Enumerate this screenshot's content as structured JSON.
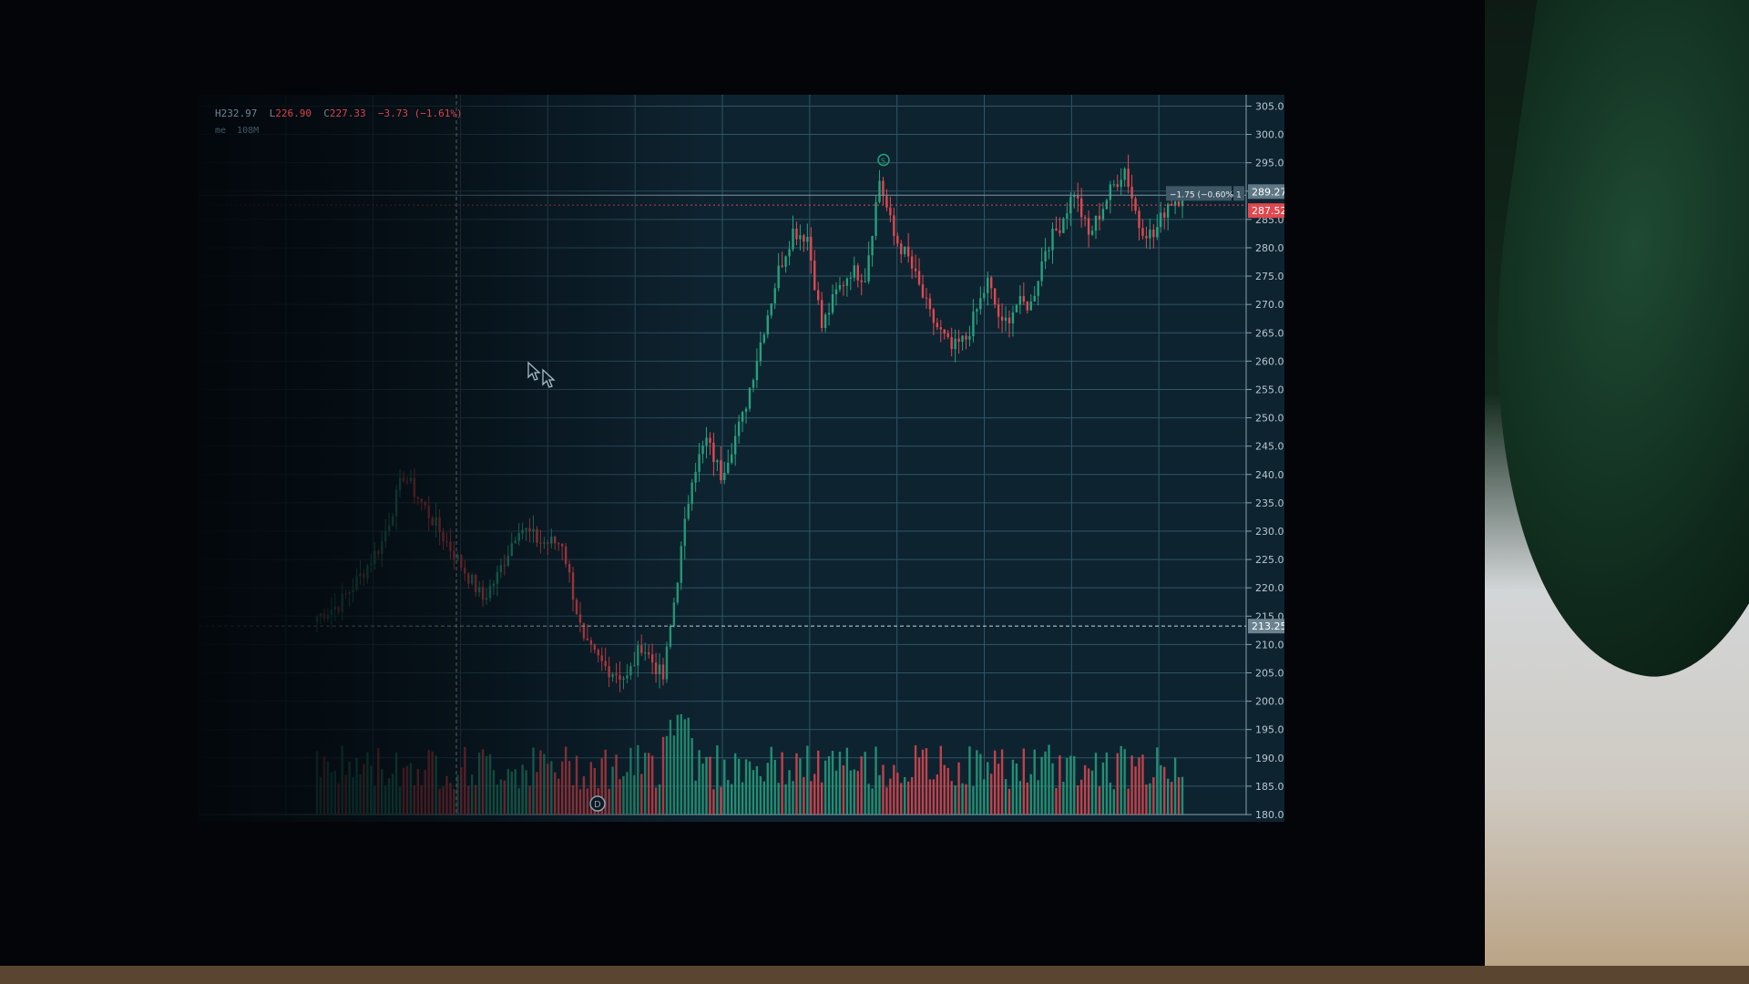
{
  "colors": {
    "up": "#26a17e",
    "down": "#e0484f",
    "grid": "#2f5566",
    "axis_text": "#b8c6cf",
    "price_tag_last": "#e0484f",
    "price_tag_ref": "#5f7885"
  },
  "header": {
    "high_label": "H",
    "high_value": "232.97",
    "low_label": "L",
    "low_value": "226.90",
    "close_label": "C",
    "close_value": "227.33",
    "change_value": "−3.73 (−1.61%)",
    "volume_label": "me",
    "volume_value": "108M"
  },
  "price_tags": {
    "ref_price": "289.27",
    "last_price": "287.52",
    "crosshair_price": "213.25",
    "change_tag": "−1.75 (−0.60%)",
    "qty_tag": "1"
  },
  "markers": {
    "split_marker": "S",
    "dividend_marker": "D"
  },
  "icons": [
    "cursor-arrow-icon"
  ],
  "chart_data": {
    "type": "candlestick",
    "title": "",
    "xlabel": "",
    "ylabel": "",
    "ylim": [
      180,
      307
    ],
    "y_ticks": [
      "180.00",
      "185.00",
      "190.00",
      "195.00",
      "200.00",
      "205.00",
      "210.00",
      "215.00",
      "220.00",
      "225.00",
      "230.00",
      "235.00",
      "240.00",
      "245.00",
      "250.00",
      "255.00",
      "260.00",
      "265.00",
      "270.00",
      "275.00",
      "280.00",
      "285.00",
      "290.00",
      "295.00",
      "300.00",
      "305.00"
    ],
    "grid": true,
    "anchor_closes": [
      [
        0,
        215
      ],
      [
        6,
        217
      ],
      [
        12,
        222
      ],
      [
        18,
        228
      ],
      [
        24,
        240
      ],
      [
        28,
        236
      ],
      [
        34,
        230
      ],
      [
        40,
        224
      ],
      [
        46,
        218
      ],
      [
        50,
        222
      ],
      [
        56,
        231
      ],
      [
        62,
        228
      ],
      [
        68,
        228
      ],
      [
        74,
        210
      ],
      [
        80,
        206
      ],
      [
        86,
        204
      ],
      [
        90,
        210
      ],
      [
        96,
        204
      ],
      [
        100,
        222
      ],
      [
        104,
        240
      ],
      [
        108,
        246
      ],
      [
        112,
        240
      ],
      [
        118,
        250
      ],
      [
        124,
        266
      ],
      [
        128,
        276
      ],
      [
        132,
        283
      ],
      [
        136,
        282
      ],
      [
        140,
        266
      ],
      [
        144,
        272
      ],
      [
        148,
        276
      ],
      [
        152,
        275
      ],
      [
        156,
        292
      ],
      [
        160,
        282
      ],
      [
        164,
        278
      ],
      [
        170,
        268
      ],
      [
        176,
        262
      ],
      [
        180,
        264
      ],
      [
        186,
        274
      ],
      [
        190,
        266
      ],
      [
        194,
        270
      ],
      [
        198,
        270
      ],
      [
        202,
        280
      ],
      [
        206,
        284
      ],
      [
        210,
        290
      ],
      [
        214,
        282
      ],
      [
        220,
        290
      ],
      [
        224,
        294
      ],
      [
        228,
        284
      ],
      [
        232,
        282
      ],
      [
        236,
        288
      ],
      [
        240,
        289
      ]
    ],
    "volume": {
      "note": "relative volume bars, same order as candles",
      "ylim": [
        0,
        1
      ]
    }
  }
}
